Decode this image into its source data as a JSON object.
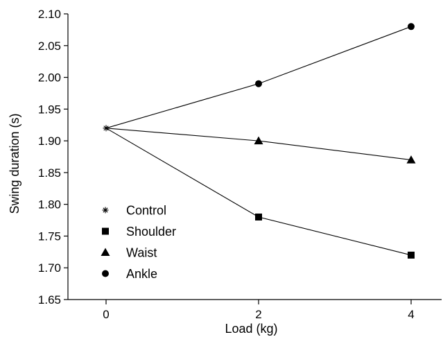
{
  "chart_data": {
    "type": "line",
    "xlabel": "Load (kg)",
    "ylabel": "Swing duration (s)",
    "x": [
      0,
      2,
      4
    ],
    "xticks": [
      "0",
      "2",
      "4"
    ],
    "xlim": [
      -0.5,
      4.4
    ],
    "ylim": [
      1.65,
      2.1
    ],
    "yticks": [
      "1.65",
      "1.70",
      "1.75",
      "1.80",
      "1.85",
      "1.90",
      "1.95",
      "2.00",
      "2.05",
      "2.10"
    ],
    "grid": false,
    "legend_position": "lower-left",
    "line_color": "#000000",
    "series": [
      {
        "name": "Control",
        "marker": "asterisk",
        "x": [
          0
        ],
        "values": [
          1.92
        ]
      },
      {
        "name": "Shoulder",
        "marker": "square",
        "x": [
          0,
          2,
          4
        ],
        "values": [
          1.92,
          1.78,
          1.72
        ]
      },
      {
        "name": "Waist",
        "marker": "triangle",
        "x": [
          0,
          2,
          4
        ],
        "values": [
          1.92,
          1.9,
          1.87
        ]
      },
      {
        "name": "Ankle",
        "marker": "circle",
        "x": [
          0,
          2,
          4
        ],
        "values": [
          1.92,
          1.99,
          2.08
        ]
      }
    ]
  }
}
